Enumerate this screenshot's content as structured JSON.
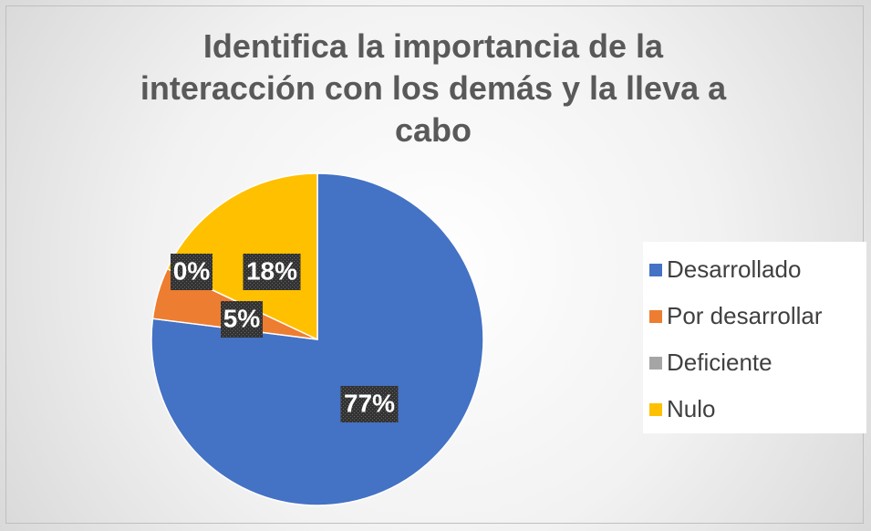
{
  "chart_data": {
    "type": "pie",
    "title": "Identifica la importancia de la interacción con los demás y la lleva a cabo",
    "categories": [
      "Desarrollado",
      "Por desarrollar",
      "Deficiente",
      "Nulo"
    ],
    "values": [
      77,
      5,
      0,
      18
    ],
    "value_labels": [
      "77%",
      "5%",
      "0%",
      "18%"
    ],
    "colors": [
      "#4472c4",
      "#ed7d31",
      "#a5a5a5",
      "#ffc000"
    ],
    "legend": "right"
  }
}
